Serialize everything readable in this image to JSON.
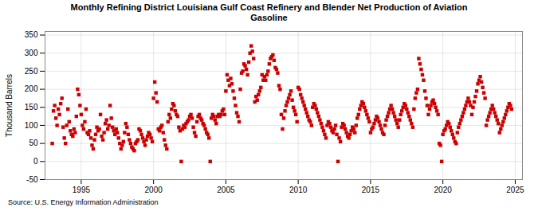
{
  "chart_data": {
    "type": "scatter",
    "title": "Monthly Refining District Louisiana Gulf Coast Refinery and Blender Net Production of Aviation\nGasoline",
    "ylabel": "Thousand Barrels",
    "source": "Source: U.S. Energy Information Administration",
    "color": "#cc0000",
    "marker": "square",
    "grid": true,
    "xlim": [
      1992.5,
      2025.5
    ],
    "ylim": [
      -50,
      360
    ],
    "xticks": [
      1995,
      2000,
      2005,
      2010,
      2015,
      2020,
      2025
    ],
    "yticks": [
      -50,
      0,
      50,
      100,
      150,
      200,
      250,
      300,
      350
    ],
    "x": [
      1993.0,
      1993.083,
      1993.167,
      1993.25,
      1993.333,
      1993.417,
      1993.5,
      1993.583,
      1993.667,
      1993.75,
      1993.833,
      1993.917,
      1994.0,
      1994.083,
      1994.167,
      1994.25,
      1994.333,
      1994.417,
      1994.5,
      1994.583,
      1994.667,
      1994.75,
      1994.833,
      1994.917,
      1995.0,
      1995.083,
      1995.167,
      1995.25,
      1995.333,
      1995.417,
      1995.5,
      1995.583,
      1995.667,
      1995.75,
      1995.833,
      1995.917,
      1996.0,
      1996.083,
      1996.167,
      1996.25,
      1996.333,
      1996.417,
      1996.5,
      1996.583,
      1996.667,
      1996.75,
      1996.833,
      1996.917,
      1997.0,
      1997.083,
      1997.167,
      1997.25,
      1997.333,
      1997.417,
      1997.5,
      1997.583,
      1997.667,
      1997.75,
      1997.833,
      1997.917,
      1998.0,
      1998.083,
      1998.167,
      1998.25,
      1998.333,
      1998.417,
      1998.5,
      1998.583,
      1998.667,
      1998.75,
      1998.833,
      1998.917,
      1999.0,
      1999.083,
      1999.167,
      1999.25,
      1999.333,
      1999.417,
      1999.5,
      1999.583,
      1999.667,
      1999.75,
      1999.833,
      1999.917,
      2000.0,
      2000.083,
      2000.167,
      2000.25,
      2000.333,
      2000.417,
      2000.5,
      2000.583,
      2000.667,
      2000.75,
      2000.833,
      2000.917,
      2001.0,
      2001.083,
      2001.167,
      2001.25,
      2001.333,
      2001.417,
      2001.5,
      2001.583,
      2001.667,
      2001.75,
      2001.833,
      2001.917,
      2002.0,
      2002.083,
      2002.167,
      2002.25,
      2002.333,
      2002.417,
      2002.5,
      2002.583,
      2002.667,
      2002.75,
      2002.833,
      2002.917,
      2003.0,
      2003.083,
      2003.167,
      2003.25,
      2003.333,
      2003.417,
      2003.5,
      2003.583,
      2003.667,
      2003.75,
      2003.833,
      2003.917,
      2004.0,
      2004.083,
      2004.167,
      2004.25,
      2004.333,
      2004.417,
      2004.5,
      2004.583,
      2004.667,
      2004.75,
      2004.833,
      2004.917,
      2005.0,
      2005.083,
      2005.167,
      2005.25,
      2005.333,
      2005.417,
      2005.5,
      2005.583,
      2005.667,
      2005.75,
      2005.833,
      2005.917,
      2006.0,
      2006.083,
      2006.167,
      2006.25,
      2006.333,
      2006.417,
      2006.5,
      2006.583,
      2006.667,
      2006.75,
      2006.833,
      2006.917,
      2007.0,
      2007.083,
      2007.167,
      2007.25,
      2007.333,
      2007.417,
      2007.5,
      2007.583,
      2007.667,
      2007.75,
      2007.833,
      2007.917,
      2008.0,
      2008.083,
      2008.167,
      2008.25,
      2008.333,
      2008.417,
      2008.5,
      2008.583,
      2008.667,
      2008.75,
      2008.833,
      2008.917,
      2009.0,
      2009.083,
      2009.167,
      2009.25,
      2009.333,
      2009.417,
      2009.5,
      2009.583,
      2009.667,
      2009.75,
      2009.833,
      2009.917,
      2010.0,
      2010.083,
      2010.167,
      2010.25,
      2010.333,
      2010.417,
      2010.5,
      2010.583,
      2010.667,
      2010.75,
      2010.833,
      2010.917,
      2011.0,
      2011.083,
      2011.167,
      2011.25,
      2011.333,
      2011.417,
      2011.5,
      2011.583,
      2011.667,
      2011.75,
      2011.833,
      2011.917,
      2012.0,
      2012.083,
      2012.167,
      2012.25,
      2012.333,
      2012.417,
      2012.5,
      2012.583,
      2012.667,
      2012.75,
      2012.833,
      2012.917,
      2013.0,
      2013.083,
      2013.167,
      2013.25,
      2013.333,
      2013.417,
      2013.5,
      2013.583,
      2013.667,
      2013.75,
      2013.833,
      2013.917,
      2014.0,
      2014.083,
      2014.167,
      2014.25,
      2014.333,
      2014.417,
      2014.5,
      2014.583,
      2014.667,
      2014.75,
      2014.833,
      2014.917,
      2015.0,
      2015.083,
      2015.167,
      2015.25,
      2015.333,
      2015.417,
      2015.5,
      2015.583,
      2015.667,
      2015.75,
      2015.833,
      2015.917,
      2016.0,
      2016.083,
      2016.167,
      2016.25,
      2016.333,
      2016.417,
      2016.5,
      2016.583,
      2016.667,
      2016.75,
      2016.833,
      2016.917,
      2017.0,
      2017.083,
      2017.167,
      2017.25,
      2017.333,
      2017.417,
      2017.5,
      2017.583,
      2017.667,
      2017.75,
      2017.833,
      2017.917,
      2018.0,
      2018.083,
      2018.167,
      2018.25,
      2018.333,
      2018.417,
      2018.5,
      2018.583,
      2018.667,
      2018.75,
      2018.833,
      2018.917,
      2019.0,
      2019.083,
      2019.167,
      2019.25,
      2019.333,
      2019.417,
      2019.5,
      2019.583,
      2019.667,
      2019.75,
      2019.833,
      2019.917,
      2020.0,
      2020.083,
      2020.167,
      2020.25,
      2020.333,
      2020.417,
      2020.5,
      2020.583,
      2020.667,
      2020.75,
      2020.833,
      2020.917,
      2021.0,
      2021.083,
      2021.167,
      2021.25,
      2021.333,
      2021.417,
      2021.5,
      2021.583,
      2021.667,
      2021.75,
      2021.833,
      2021.917,
      2022.0,
      2022.083,
      2022.167,
      2022.25,
      2022.333,
      2022.417,
      2022.5,
      2022.583,
      2022.667,
      2022.75,
      2022.833,
      2022.917,
      2023.0,
      2023.083,
      2023.167,
      2023.25,
      2023.333,
      2023.417,
      2023.5,
      2023.583,
      2023.667,
      2023.75,
      2023.833,
      2023.917,
      2024.0,
      2024.083,
      2024.167,
      2024.25,
      2024.333,
      2024.417,
      2024.5,
      2024.583,
      2024.667,
      2024.75
    ],
    "values": [
      50,
      140,
      155,
      120,
      100,
      145,
      130,
      160,
      175,
      95,
      65,
      50,
      100,
      145,
      110,
      85,
      75,
      70,
      90,
      80,
      125,
      200,
      185,
      155,
      130,
      100,
      90,
      110,
      145,
      80,
      75,
      85,
      65,
      45,
      35,
      60,
      75,
      95,
      85,
      90,
      130,
      70,
      60,
      80,
      105,
      115,
      90,
      100,
      155,
      120,
      95,
      85,
      75,
      90,
      80,
      65,
      50,
      35,
      45,
      55,
      80,
      105,
      95,
      75,
      60,
      50,
      40,
      35,
      30,
      50,
      55,
      60,
      90,
      85,
      75,
      65,
      55,
      45,
      60,
      70,
      80,
      75,
      65,
      55,
      175,
      220,
      190,
      165,
      90,
      85,
      95,
      100,
      80,
      60,
      45,
      35,
      110,
      130,
      120,
      145,
      160,
      155,
      140,
      130,
      125,
      95,
      85,
      0,
      90,
      100,
      95,
      105,
      110,
      115,
      125,
      130,
      120,
      95,
      80,
      70,
      110,
      125,
      130,
      120,
      115,
      105,
      100,
      90,
      80,
      75,
      65,
      0,
      120,
      130,
      125,
      115,
      105,
      125,
      130,
      125,
      130,
      140,
      145,
      130,
      195,
      240,
      225,
      210,
      230,
      215,
      195,
      175,
      155,
      135,
      125,
      110,
      200,
      245,
      250,
      270,
      265,
      255,
      240,
      275,
      300,
      320,
      305,
      285,
      165,
      180,
      170,
      185,
      195,
      205,
      240,
      225,
      235,
      225,
      240,
      250,
      270,
      285,
      290,
      295,
      280,
      260,
      255,
      245,
      210,
      200,
      130,
      90,
      120,
      140,
      155,
      165,
      175,
      185,
      195,
      170,
      150,
      140,
      130,
      110,
      205,
      200,
      185,
      175,
      165,
      155,
      145,
      135,
      125,
      115,
      110,
      100,
      150,
      160,
      155,
      145,
      135,
      125,
      115,
      105,
      95,
      85,
      75,
      65,
      100,
      110,
      105,
      95,
      85,
      80,
      90,
      100,
      75,
      0,
      65,
      55,
      95,
      105,
      100,
      90,
      80,
      70,
      65,
      75,
      85,
      95,
      90,
      80,
      100,
      120,
      130,
      145,
      155,
      165,
      160,
      150,
      140,
      130,
      120,
      110,
      80,
      90,
      95,
      105,
      115,
      125,
      120,
      110,
      100,
      90,
      80,
      75,
      100,
      115,
      125,
      135,
      145,
      155,
      145,
      135,
      125,
      115,
      105,
      95,
      115,
      130,
      140,
      150,
      160,
      155,
      145,
      135,
      125,
      115,
      105,
      95,
      145,
      175,
      190,
      200,
      285,
      270,
      255,
      240,
      225,
      195,
      175,
      155,
      130,
      145,
      155,
      165,
      170,
      160,
      150,
      140,
      130,
      50,
      45,
      0,
      75,
      85,
      90,
      100,
      110,
      105,
      95,
      85,
      75,
      65,
      55,
      50,
      80,
      95,
      105,
      115,
      125,
      135,
      145,
      155,
      165,
      175,
      165,
      155,
      130,
      150,
      165,
      180,
      195,
      215,
      225,
      235,
      220,
      205,
      190,
      175,
      100,
      115,
      125,
      135,
      145,
      155,
      145,
      135,
      125,
      115,
      105,
      80,
      90,
      100,
      110,
      120,
      130,
      140,
      150,
      160,
      155,
      145
    ]
  }
}
